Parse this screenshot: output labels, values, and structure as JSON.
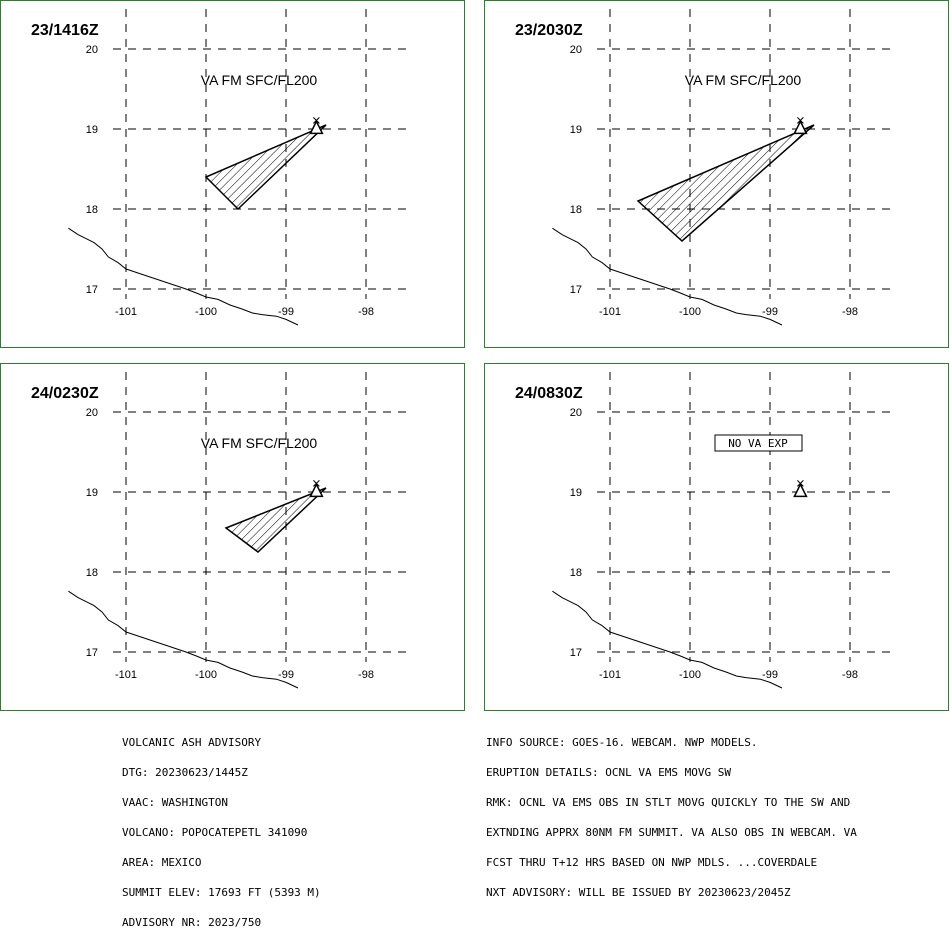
{
  "panels": [
    {
      "time": "23/1416Z",
      "annotation": "VA FM SFC/FL200",
      "annotation_boxed": false,
      "ash_polygon": [
        [
          -98.5,
          19.05
        ],
        [
          -100.0,
          18.4
        ],
        [
          -99.6,
          18.0
        ]
      ]
    },
    {
      "time": "23/2030Z",
      "annotation": "VA FM SFC/FL200",
      "annotation_boxed": false,
      "ash_polygon": [
        [
          -98.45,
          19.05
        ],
        [
          -100.65,
          18.1
        ],
        [
          -100.1,
          17.6
        ]
      ]
    },
    {
      "time": "24/0230Z",
      "annotation": "VA FM SFC/FL200",
      "annotation_boxed": false,
      "ash_polygon": [
        [
          -98.5,
          19.05
        ],
        [
          -99.75,
          18.55
        ],
        [
          -99.35,
          18.25
        ]
      ]
    },
    {
      "time": "24/0830Z",
      "annotation": "NO VA EXP",
      "annotation_boxed": true,
      "ash_polygon": []
    }
  ],
  "map": {
    "lat_labels": [
      "20",
      "19",
      "18",
      "17"
    ],
    "lat_values": [
      20,
      19,
      18,
      17
    ],
    "lon_labels": [
      "-101",
      "-100",
      "-99",
      "-98"
    ],
    "lon_values": [
      -101,
      -100,
      -99,
      -98
    ],
    "volcano": {
      "lat": 19.02,
      "lon": -98.62
    },
    "gridline_style": "dashed",
    "coastline": [
      [
        -101.72,
        17.76
      ],
      [
        -101.6,
        17.68
      ],
      [
        -101.5,
        17.63
      ],
      [
        -101.4,
        17.58
      ],
      [
        -101.3,
        17.5
      ],
      [
        -101.22,
        17.4
      ],
      [
        -101.1,
        17.33
      ],
      [
        -101.0,
        17.25
      ],
      [
        -100.85,
        17.2
      ],
      [
        -100.7,
        17.15
      ],
      [
        -100.55,
        17.1
      ],
      [
        -100.4,
        17.05
      ],
      [
        -100.25,
        17.0
      ],
      [
        -100.12,
        16.95
      ],
      [
        -100.0,
        16.9
      ],
      [
        -99.85,
        16.87
      ],
      [
        -99.7,
        16.8
      ],
      [
        -99.55,
        16.75
      ],
      [
        -99.42,
        16.7
      ],
      [
        -99.3,
        16.68
      ],
      [
        -99.12,
        16.66
      ],
      [
        -99.0,
        16.62
      ],
      [
        -98.85,
        16.55
      ]
    ]
  },
  "advisory_left": [
    "VOLCANIC ASH ADVISORY",
    "DTG: 20230623/1445Z",
    "VAAC: WASHINGTON",
    "VOLCANO: POPOCATEPETL 341090",
    "AREA: MEXICO",
    "SUMMIT ELEV: 17693 FT (5393 M)",
    "ADVISORY NR: 2023/750"
  ],
  "advisory_right": [
    "INFO SOURCE: GOES-16. WEBCAM. NWP MODELS.",
    "ERUPTION DETAILS: OCNL VA EMS MOVG SW",
    "RMK: OCNL VA EMS OBS IN STLT MOVG QUICKLY TO THE SW AND",
    "EXTNDING APPRX 80NM FM SUMMIT. VA ALSO OBS IN WEBCAM. VA",
    "FCST THRU T+12 HRS BASED ON NWP MDLS. ...COVERDALE",
    "NXT ADVISORY: WILL BE ISSUED BY 20230623/2045Z"
  ],
  "colors": {
    "panel_border": "#2e7d32",
    "ink": "#000000",
    "background": "#ffffff"
  }
}
